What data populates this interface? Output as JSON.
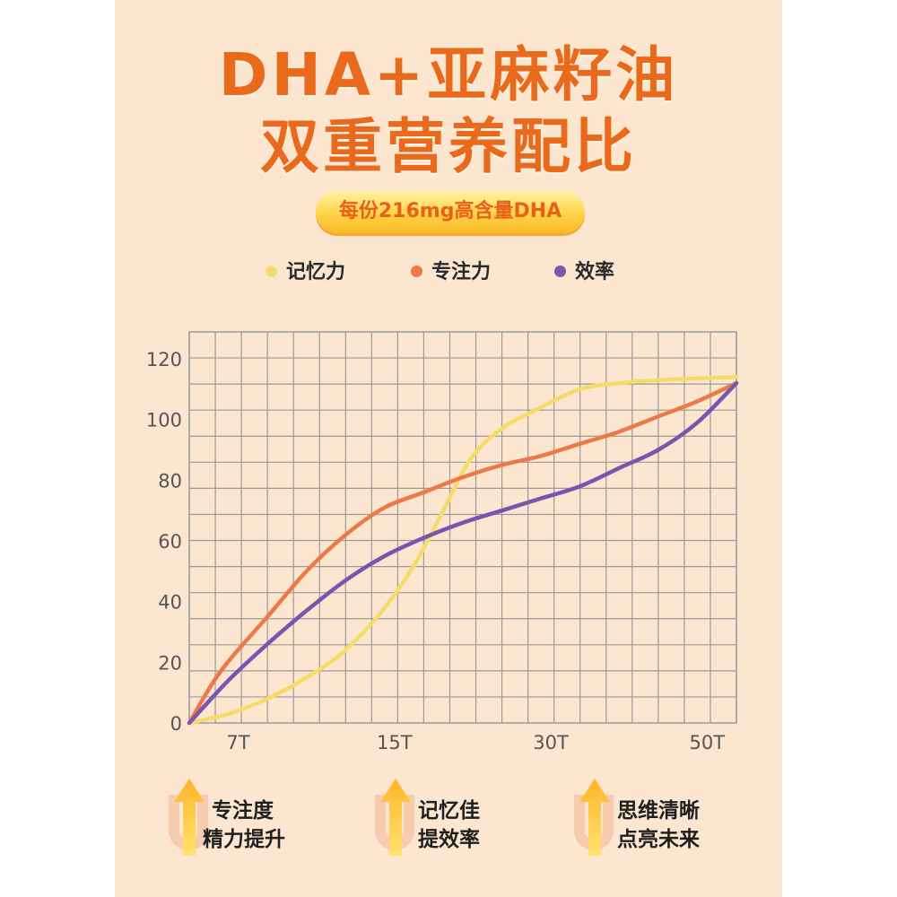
{
  "title": {
    "line1": "DHA+亚麻籽油",
    "line2": "双重营养配比"
  },
  "badge": "每份216mg高含量DHA",
  "colors": {
    "title": "#e96a1c",
    "memory": "#f5dc6a",
    "focus": "#ec7a48",
    "efficiency": "#7b55ad",
    "grid": "#9a9a9a",
    "panel": "#fde6cf"
  },
  "chart_data": {
    "type": "line",
    "title": "",
    "xlabel": "",
    "ylabel": "",
    "ylim": [
      0,
      120
    ],
    "yticks": [
      0,
      20,
      40,
      60,
      80,
      100,
      120
    ],
    "x_range": [
      0,
      14
    ],
    "xticks": [
      {
        "x": 1.25,
        "label": "7T"
      },
      {
        "x": 5.25,
        "label": "15T"
      },
      {
        "x": 9.25,
        "label": "30T"
      },
      {
        "x": 13.25,
        "label": "50T"
      }
    ],
    "grid": true,
    "legend_position": "top",
    "series": [
      {
        "name": "记忆力",
        "color": "#f5dc6a",
        "points": [
          [
            0,
            0
          ],
          [
            1,
            3
          ],
          [
            2,
            8
          ],
          [
            3,
            15
          ],
          [
            4,
            24
          ],
          [
            5,
            38
          ],
          [
            5.8,
            53
          ],
          [
            6.5,
            70
          ],
          [
            7.2,
            87
          ],
          [
            8,
            97
          ],
          [
            9,
            104
          ],
          [
            10,
            110
          ],
          [
            11,
            112
          ],
          [
            12,
            113
          ],
          [
            13,
            113.5
          ],
          [
            14,
            114
          ]
        ]
      },
      {
        "name": "专注力",
        "color": "#ec7a48",
        "points": [
          [
            0,
            0
          ],
          [
            0.8,
            17
          ],
          [
            2,
            35
          ],
          [
            3,
            50
          ],
          [
            4,
            62
          ],
          [
            5,
            71
          ],
          [
            6,
            76
          ],
          [
            7,
            81
          ],
          [
            8,
            85
          ],
          [
            9,
            88
          ],
          [
            10,
            92
          ],
          [
            11,
            96
          ],
          [
            12,
            101
          ],
          [
            13,
            106
          ],
          [
            14,
            112
          ]
        ]
      },
      {
        "name": "效率",
        "color": "#7b55ad",
        "points": [
          [
            0,
            0
          ],
          [
            1,
            14
          ],
          [
            2,
            26
          ],
          [
            3,
            37
          ],
          [
            4,
            47
          ],
          [
            5,
            55
          ],
          [
            6,
            61
          ],
          [
            7,
            66
          ],
          [
            8,
            70
          ],
          [
            9,
            74
          ],
          [
            10,
            78
          ],
          [
            11,
            84
          ],
          [
            12,
            90
          ],
          [
            13,
            99
          ],
          [
            14,
            112
          ]
        ]
      }
    ]
  },
  "features": [
    {
      "line1": "专注度",
      "line2": "精力提升"
    },
    {
      "line1": "记忆佳",
      "line2": "提效率"
    },
    {
      "line1": "思维清晰",
      "line2": "点亮未来"
    }
  ]
}
